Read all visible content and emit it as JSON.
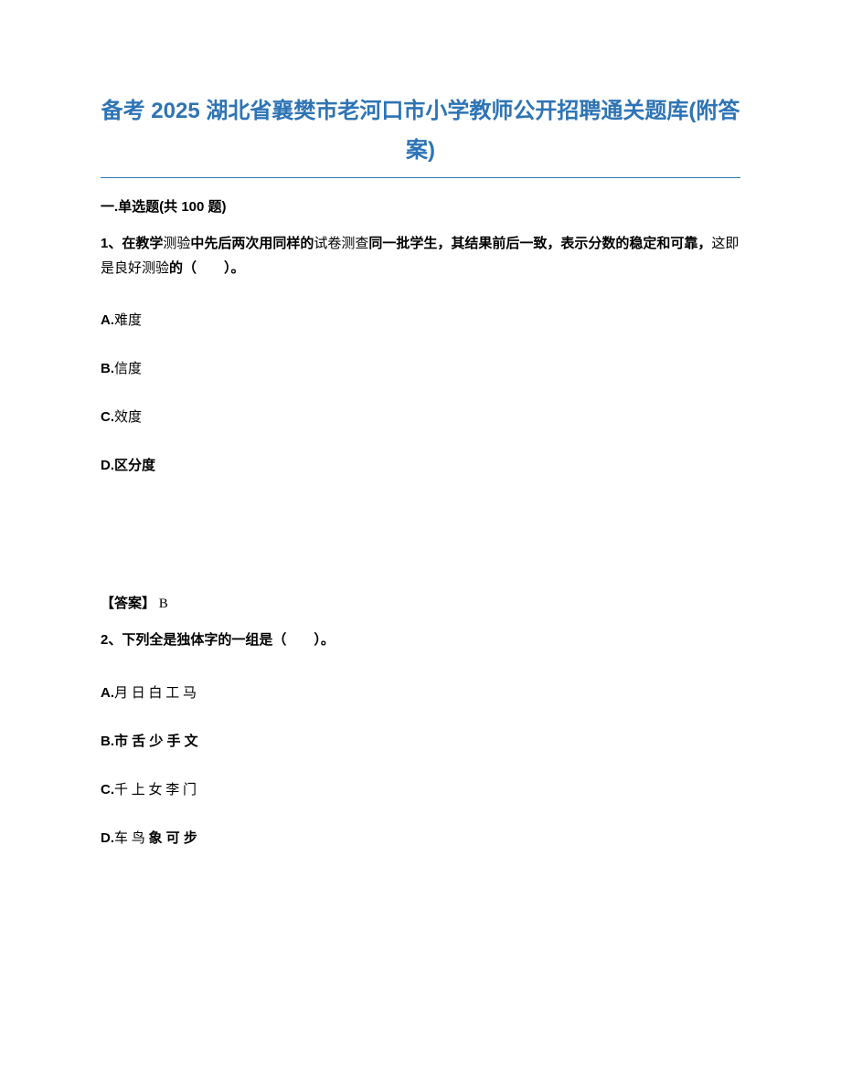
{
  "title": "备考 2025 湖北省襄樊市老河口市小学教师公开招聘通关题库(附答案)",
  "section_header": "一.单选题(共 100 题)",
  "q1": {
    "number": "1、",
    "prefix": "在教学",
    "mid1": "测验",
    "bold2": "中先后两次用同样的",
    "mid2": "试卷测查",
    "bold3": "同一批学生，其结果前后一致，表示分数的稳定和可靠，",
    "mid3": "这即是良好测验",
    "bold4": "的（　　）。",
    "options": {
      "A": {
        "label": "A.",
        "text": "难度"
      },
      "B": {
        "label": "B.",
        "text": "信度"
      },
      "C": {
        "label": "C.",
        "text": "效度"
      },
      "D": {
        "label": "D.",
        "text": "区分度"
      }
    },
    "answer_label": "【答案】",
    "answer_value": " B"
  },
  "q2": {
    "number": "2、",
    "bold1": "下列全是独体字的一组是（　　）。",
    "options": {
      "A": {
        "label": "A.",
        "text": "月 日 白 工 马"
      },
      "B": {
        "label": "B.",
        "text": "市 舌 少 手 文"
      },
      "C": {
        "label": "C.",
        "text": "千 上 女 李 门"
      },
      "D": {
        "label": "D.",
        "pre": "车 鸟 ",
        "bold": "象 可 步"
      }
    }
  }
}
